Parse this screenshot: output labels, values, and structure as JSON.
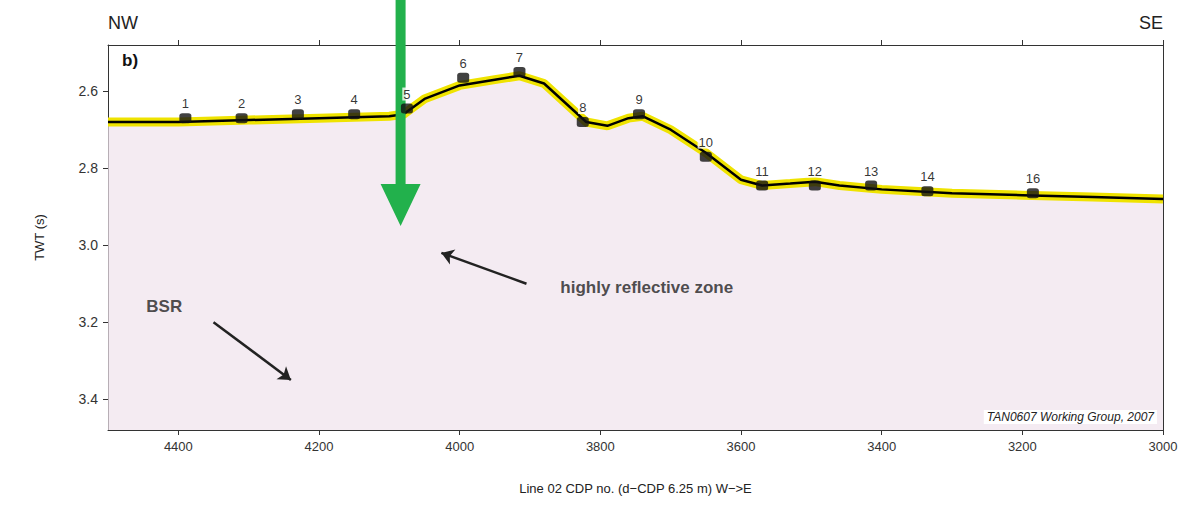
{
  "chart_data": {
    "type": "line",
    "panel": "b)",
    "direction_labels": [
      "NW",
      "SE"
    ],
    "xlabel": "Line 02 CDP no. (d−CDP 6.25 m) W−>E",
    "ylabel": "TWT (s)",
    "color": "#000000",
    "x": [
      4500,
      4400,
      4300,
      4200,
      4100,
      4080,
      4050,
      4000,
      3950,
      3915,
      3880,
      3850,
      3820,
      3790,
      3760,
      3740,
      3700,
      3650,
      3600,
      3570,
      3530,
      3495,
      3460,
      3400,
      3300,
      3200,
      3100,
      3000
    ],
    "values": [
      2.68,
      2.68,
      2.675,
      2.67,
      2.665,
      2.66,
      2.62,
      2.585,
      2.57,
      2.56,
      2.58,
      2.63,
      2.68,
      2.69,
      2.67,
      2.665,
      2.7,
      2.76,
      2.83,
      2.845,
      2.84,
      2.835,
      2.845,
      2.855,
      2.865,
      2.87,
      2.875,
      2.88
    ],
    "stations": {
      "labels": [
        "1",
        "2",
        "3",
        "4",
        "5",
        "6",
        "7",
        "8",
        "9",
        "10",
        "11",
        "12",
        "13",
        "14",
        "16"
      ],
      "x": [
        4390,
        4310,
        4230,
        4150,
        4075,
        3995,
        3915,
        3825,
        3745,
        3650,
        3570,
        3495,
        3415,
        3335,
        3185
      ],
      "values": [
        2.67,
        2.67,
        2.66,
        2.66,
        2.645,
        2.565,
        2.55,
        2.68,
        2.66,
        2.77,
        2.845,
        2.845,
        2.845,
        2.86,
        2.865
      ],
      "marker": "square"
    },
    "annotations": [
      {
        "text": "BSR",
        "x": 4420,
        "y": 3.16,
        "arrow": [
          [
            4350,
            3.2
          ],
          [
            4240,
            3.35
          ]
        ]
      },
      {
        "text": "highly reflective zone",
        "x": 3734,
        "y": 3.11,
        "arrow": [
          [
            3905,
            3.1
          ],
          [
            4026,
            3.02
          ]
        ]
      }
    ],
    "pointer": {
      "x": 4084,
      "y": 2.95,
      "color": "#22b14c"
    },
    "credit": "TAN0607 Working Group, 2007",
    "xlim": [
      4500,
      3000
    ],
    "xticks": [
      4400,
      4200,
      4000,
      3800,
      3600,
      3400,
      3200,
      3000
    ],
    "ylim": [
      3.48,
      2.48
    ],
    "yticks": [
      2.6,
      2.8,
      {
        "value": 3,
        "label": "3.0"
      },
      3.2,
      3.4
    ],
    "grid": false
  }
}
